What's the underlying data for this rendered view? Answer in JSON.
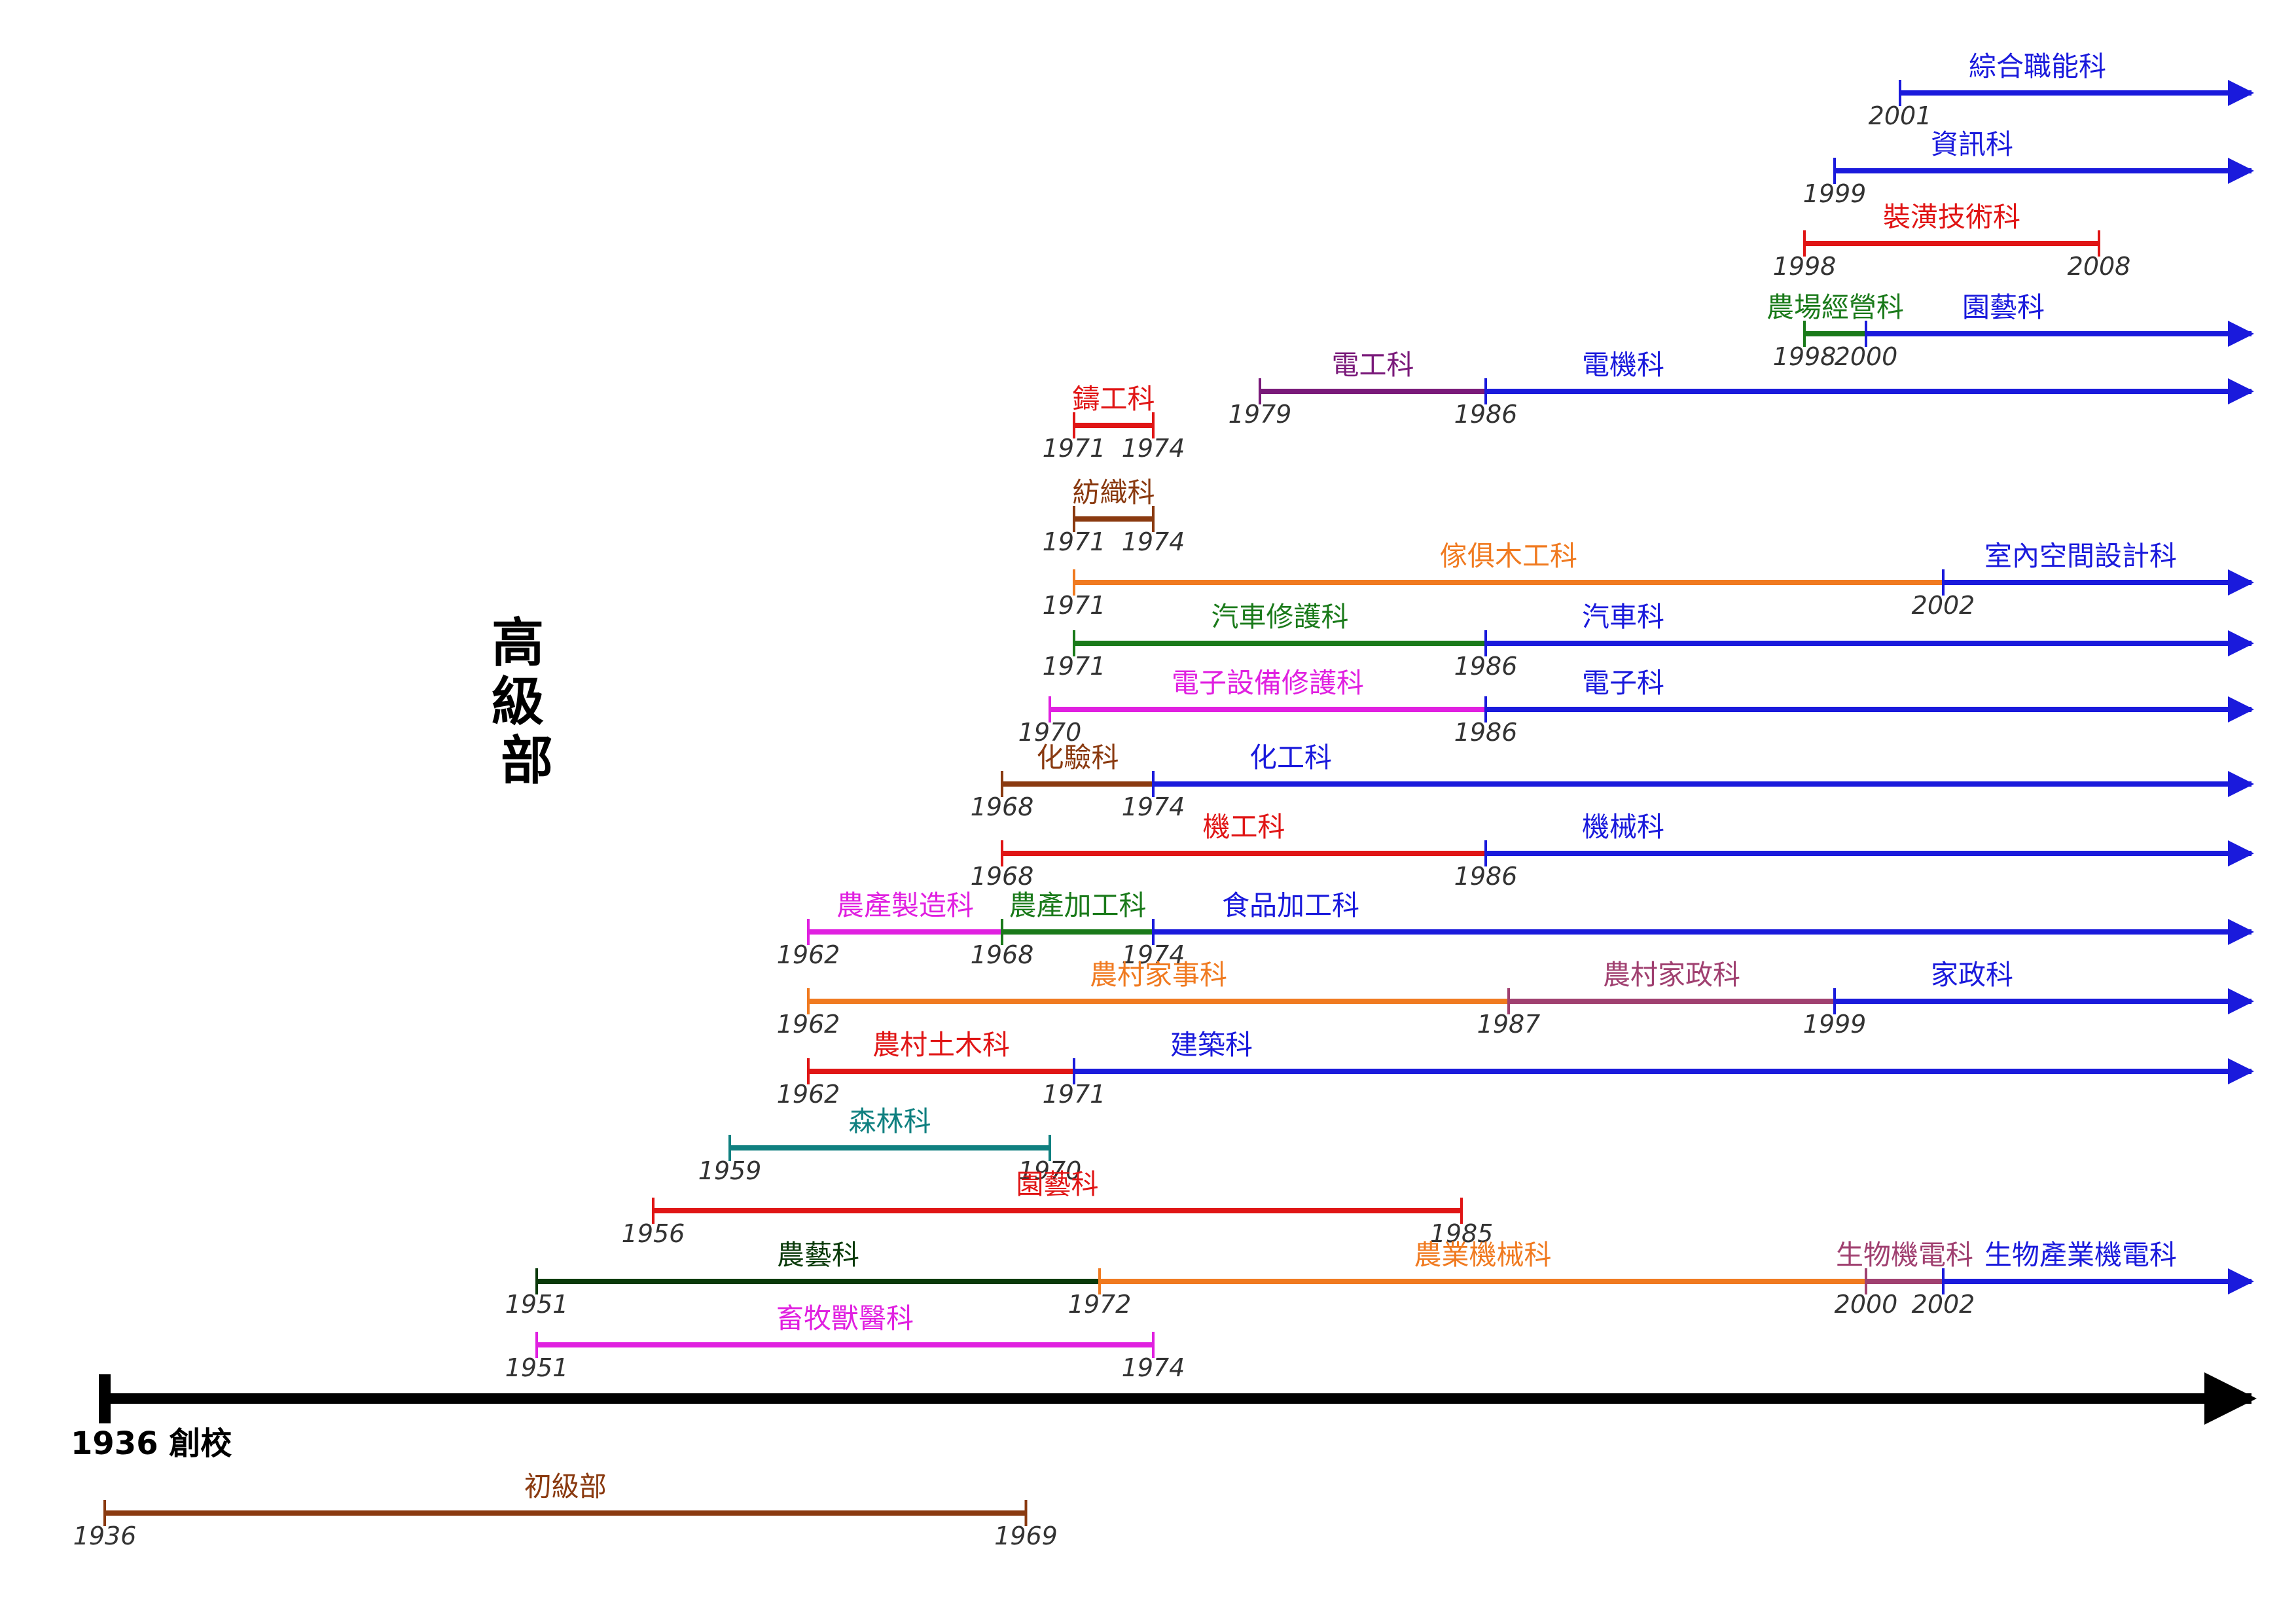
{
  "title": "高級部",
  "main_axis": {
    "label": "1936 創校",
    "color": "#000000"
  },
  "colors": {
    "blue": "#1a1adc",
    "red": "#e01515",
    "green": "#1a7a1a",
    "orange": "#f07a20",
    "purple": "#7a1a7a",
    "magenta": "#e020e0",
    "brown": "#8a3a10",
    "teal": "#108080",
    "plum": "#a04070",
    "darkgreen": "#0a3a0a"
  },
  "departments": [
    {
      "label": "綜合職能科",
      "color": "blue",
      "segments": [
        {
          "start": "2001",
          "end": "",
          "ongoing": true
        }
      ]
    },
    {
      "label": "資訊科",
      "color": "blue",
      "segments": [
        {
          "start": "1999",
          "end": "",
          "ongoing": true
        }
      ]
    },
    {
      "label": "裝潢技術科",
      "color": "red",
      "segments": [
        {
          "start": "1998",
          "end": "2008",
          "ongoing": false
        }
      ]
    },
    {
      "label": "農場經營科 → 園藝科",
      "color": "green",
      "segments": [
        {
          "label": "農場經營科",
          "color": "green",
          "start": "1998",
          "end": "2000"
        },
        {
          "label": "園藝科",
          "color": "blue",
          "start": "2000",
          "end": "",
          "ongoing": true
        }
      ]
    },
    {
      "label": "電工科 → 電機科",
      "color": "purple",
      "segments": [
        {
          "label": "電工科",
          "color": "purple",
          "start": "1979",
          "end": "1986"
        },
        {
          "label": "電機科",
          "color": "blue",
          "start": "1986",
          "end": "",
          "ongoing": true
        }
      ]
    },
    {
      "label": "鑄工科",
      "color": "red",
      "segments": [
        {
          "start": "1971",
          "end": "1974"
        }
      ]
    },
    {
      "label": "紡織科",
      "color": "brown",
      "segments": [
        {
          "start": "1971",
          "end": "1974"
        }
      ]
    },
    {
      "label": "傢俱木工科 → 室內空間設計科",
      "color": "orange",
      "segments": [
        {
          "label": "傢俱木工科",
          "color": "orange",
          "start": "1971",
          "end": "2002"
        },
        {
          "label": "室內空間設計科",
          "color": "blue",
          "start": "2002",
          "end": "",
          "ongoing": true
        }
      ]
    },
    {
      "label": "汽車修護科 → 汽車科",
      "color": "green",
      "segments": [
        {
          "label": "汽車修護科",
          "color": "green",
          "start": "1971",
          "end": "1986"
        },
        {
          "label": "汽車科",
          "color": "blue",
          "start": "1986",
          "end": "",
          "ongoing": true
        }
      ]
    },
    {
      "label": "電子設備修護科 → 電子科",
      "color": "magenta",
      "segments": [
        {
          "label": "電子設備修護科",
          "color": "magenta",
          "start": "1970",
          "end": "1986"
        },
        {
          "label": "電子科",
          "color": "blue",
          "start": "1986",
          "end": "",
          "ongoing": true
        }
      ]
    },
    {
      "label": "化驗科 → 化工科",
      "color": "brown",
      "segments": [
        {
          "label": "化驗科",
          "color": "brown",
          "start": "1968",
          "end": "1974"
        },
        {
          "label": "化工科",
          "color": "blue",
          "start": "1974",
          "end": "",
          "ongoing": true
        }
      ]
    },
    {
      "label": "機工科 → 機械科",
      "color": "red",
      "segments": [
        {
          "label": "機工科",
          "color": "red",
          "start": "1968",
          "end": "1986"
        },
        {
          "label": "機械科",
          "color": "blue",
          "start": "1986",
          "end": "",
          "ongoing": true
        }
      ]
    },
    {
      "label": "農產製造科 → 農產加工科 → 食品加工科",
      "color": "magenta",
      "segments": [
        {
          "label": "農產製造科",
          "color": "magenta",
          "start": "1962",
          "end": "1968"
        },
        {
          "label": "農產加工科",
          "color": "green",
          "start": "1968",
          "end": "1974"
        },
        {
          "label": "食品加工科",
          "color": "blue",
          "start": "1974",
          "end": "",
          "ongoing": true
        }
      ]
    },
    {
      "label": "農村家事科 → 農村家政科 → 家政科",
      "color": "orange",
      "segments": [
        {
          "label": "農村家事科",
          "color": "orange",
          "start": "1962",
          "end": "1987"
        },
        {
          "label": "農村家政科",
          "color": "plum",
          "start": "1987",
          "end": "1999"
        },
        {
          "label": "家政科",
          "color": "blue",
          "start": "1999",
          "end": "",
          "ongoing": true
        }
      ]
    },
    {
      "label": "農村土木科 → 建築科",
      "color": "red",
      "segments": [
        {
          "label": "農村土木科",
          "color": "red",
          "start": "1962",
          "end": "1971"
        },
        {
          "label": "建築科",
          "color": "blue",
          "start": "1971",
          "end": "",
          "ongoing": true
        }
      ]
    },
    {
      "label": "森林科",
      "color": "teal",
      "segments": [
        {
          "start": "1959",
          "end": "1970"
        }
      ]
    },
    {
      "label": "園藝科",
      "color": "red",
      "segments": [
        {
          "start": "1956",
          "end": "1985"
        }
      ]
    },
    {
      "label": "農藝科 → 農業機械科 → 生物機電科 → 生物產業機電科",
      "color": "darkgreen",
      "segments": [
        {
          "label": "農藝科",
          "color": "darkgreen",
          "start": "1951",
          "end": "1972"
        },
        {
          "label": "農業機械科",
          "color": "orange",
          "start": "1972",
          "end": "2000"
        },
        {
          "label": "生物機電科",
          "color": "plum",
          "start": "2000",
          "end": "2002"
        },
        {
          "label": "生物產業機電科",
          "color": "blue",
          "start": "2002",
          "end": "",
          "ongoing": true
        }
      ]
    },
    {
      "label": "畜牧獸醫科",
      "color": "magenta",
      "segments": [
        {
          "start": "1951",
          "end": "1974"
        }
      ]
    },
    {
      "label": "初級部",
      "color": "brown",
      "segments": [
        {
          "start": "1936",
          "end": "1969"
        }
      ]
    }
  ]
}
